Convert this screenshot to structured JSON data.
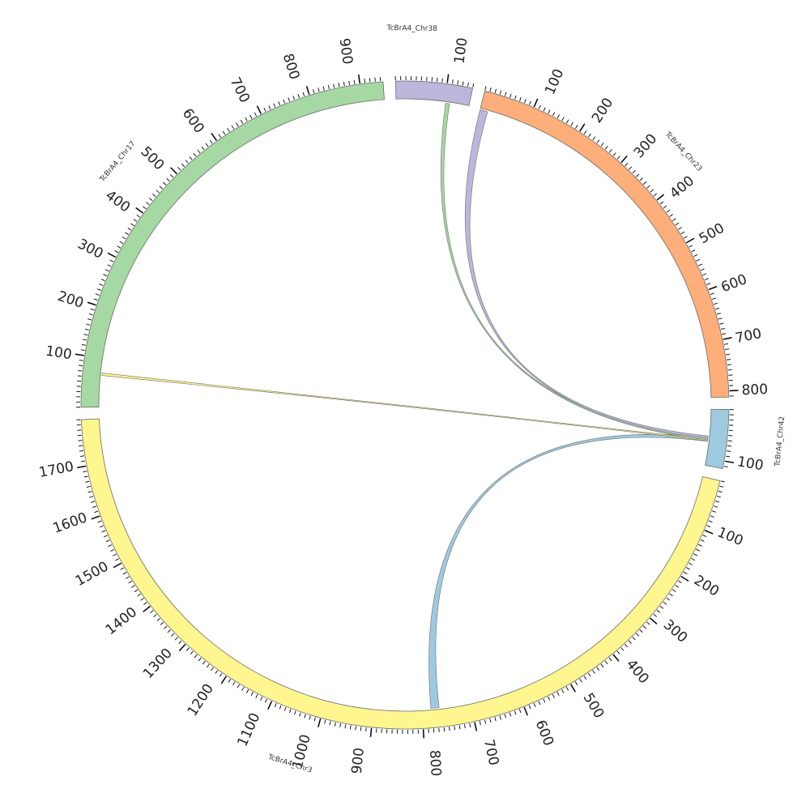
{
  "chart_data": {
    "type": "chord",
    "chromosomes": [
      {
        "id": "chr42",
        "name": "TcBrA4_Chr42",
        "length": 115,
        "color": "#9ecae1",
        "major_ticks": [
          100
        ]
      },
      {
        "id": "chr3",
        "name": "TcBrA4_Chr3",
        "length": 1790,
        "color": "#fff68f",
        "major_ticks": [
          100,
          200,
          300,
          400,
          500,
          600,
          700,
          800,
          900,
          1000,
          1100,
          1200,
          1300,
          1400,
          1500,
          1600,
          1700
        ]
      },
      {
        "id": "chr17",
        "name": "TcBrA4_Chr17",
        "length": 945,
        "color": "#a6d8a3",
        "major_ticks": [
          100,
          200,
          300,
          400,
          500,
          600,
          700,
          800,
          900
        ]
      },
      {
        "id": "chr38",
        "name": "TcBrA4_Chr38",
        "length": 150,
        "color": "#bcb6db",
        "major_ticks": [
          100
        ]
      },
      {
        "id": "chr23",
        "name": "TcBrA4_Chr23",
        "length": 812,
        "color": "#fdae7b",
        "major_ticks": [
          100,
          200,
          300,
          400,
          500,
          600,
          700,
          800
        ]
      }
    ],
    "links": [
      {
        "source": "chr42",
        "source_range": [
          58,
          66
        ],
        "target": "chr3",
        "target_range": [
          765,
          782
        ],
        "color": "#9ecae1"
      },
      {
        "source": "chr42",
        "source_range": [
          62,
          65
        ],
        "target": "chr17",
        "target_range": [
          65,
          70
        ],
        "color": "#fff68f"
      },
      {
        "source": "chr42",
        "source_range": [
          58,
          63
        ],
        "target": "chr38",
        "target_range": [
          102,
          110
        ],
        "color": "#a6d8a3"
      },
      {
        "source": "chr42",
        "source_range": [
          55,
          60
        ],
        "target": "chr23",
        "target_range": [
          0,
          16
        ],
        "color": "#bcb6db"
      }
    ]
  }
}
